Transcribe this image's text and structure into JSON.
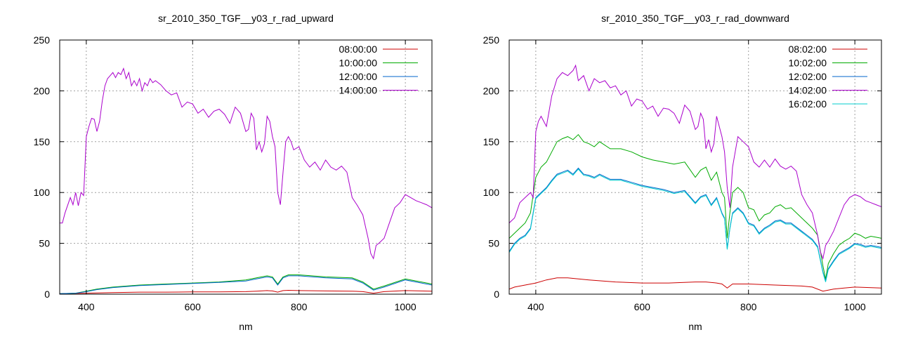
{
  "chart_data": [
    {
      "type": "line",
      "title": "sr_2010_350_TGF__y03_r_rad_upward",
      "xlabel": "nm",
      "ylabel": "",
      "xlim": [
        350,
        1050
      ],
      "ylim": [
        0,
        250
      ],
      "xticks": [
        400,
        600,
        800,
        1000
      ],
      "yticks": [
        0,
        50,
        100,
        150,
        200,
        250
      ],
      "grid": true,
      "legend_position": "top-right",
      "series": [
        {
          "name": "08:00:00",
          "color": "#cc0000",
          "x": [
            350,
            400,
            450,
            500,
            550,
            600,
            650,
            700,
            720,
            740,
            750,
            760,
            770,
            780,
            800,
            850,
            900,
            920,
            940,
            960,
            1000,
            1050
          ],
          "y": [
            0.5,
            1,
            1.5,
            2,
            2,
            2.2,
            2.3,
            2.5,
            3,
            3.5,
            3.2,
            2,
            3.5,
            3.8,
            3.5,
            3.2,
            3,
            2.5,
            1,
            2.5,
            3.5,
            3
          ]
        },
        {
          "name": "10:00:00",
          "color": "#00aa00",
          "x": [
            350,
            380,
            400,
            420,
            450,
            500,
            550,
            600,
            650,
            700,
            720,
            740,
            750,
            760,
            770,
            780,
            800,
            850,
            900,
            920,
            940,
            960,
            1000,
            1050
          ],
          "y": [
            0.5,
            1,
            3,
            5,
            7,
            9,
            10,
            11,
            12,
            14,
            16,
            18,
            17,
            10,
            17,
            19,
            19,
            17,
            16,
            12,
            5,
            8,
            15,
            10
          ]
        },
        {
          "name": "12:00:00",
          "color": "#0066cc",
          "x": [
            350,
            380,
            400,
            420,
            450,
            500,
            550,
            600,
            650,
            700,
            720,
            740,
            750,
            760,
            770,
            780,
            800,
            850,
            900,
            920,
            940,
            960,
            1000,
            1050
          ],
          "y": [
            0.5,
            1,
            2.5,
            4.5,
            6.5,
            8.5,
            9.5,
            10.5,
            11.5,
            13,
            15,
            17,
            16,
            9,
            16,
            18,
            18,
            16,
            15,
            11,
            4,
            7,
            14,
            9
          ]
        },
        {
          "name": "14:00:00",
          "color": "#aa00cc",
          "x": [
            350,
            355,
            360,
            370,
            375,
            380,
            385,
            390,
            395,
            400,
            405,
            410,
            415,
            420,
            425,
            430,
            435,
            440,
            445,
            450,
            455,
            460,
            465,
            470,
            475,
            480,
            485,
            490,
            495,
            500,
            505,
            510,
            515,
            520,
            525,
            530,
            540,
            550,
            560,
            570,
            580,
            590,
            600,
            610,
            620,
            630,
            640,
            650,
            660,
            670,
            680,
            690,
            700,
            705,
            710,
            715,
            720,
            725,
            730,
            735,
            740,
            745,
            750,
            755,
            760,
            765,
            770,
            775,
            780,
            785,
            790,
            800,
            810,
            820,
            830,
            840,
            850,
            860,
            870,
            880,
            890,
            900,
            910,
            920,
            930,
            935,
            940,
            945,
            950,
            960,
            970,
            980,
            990,
            1000,
            1010,
            1020,
            1030,
            1040,
            1050
          ],
          "y": [
            70,
            70,
            80,
            95,
            88,
            100,
            87,
            100,
            97,
            155,
            165,
            173,
            172,
            160,
            170,
            190,
            205,
            212,
            215,
            218,
            213,
            218,
            216,
            222,
            212,
            218,
            205,
            210,
            205,
            212,
            200,
            208,
            205,
            212,
            208,
            210,
            206,
            200,
            196,
            198,
            184,
            189,
            187,
            178,
            182,
            174,
            180,
            182,
            177,
            168,
            184,
            178,
            160,
            162,
            178,
            173,
            142,
            150,
            140,
            148,
            175,
            170,
            155,
            145,
            100,
            88,
            120,
            150,
            155,
            150,
            142,
            145,
            132,
            125,
            130,
            122,
            132,
            125,
            122,
            126,
            120,
            95,
            87,
            78,
            55,
            40,
            35,
            48,
            50,
            55,
            70,
            85,
            90,
            98,
            95,
            92,
            90,
            88,
            85
          ]
        }
      ]
    },
    {
      "type": "line",
      "title": "sr_2010_350_TGF__y03_r_rad_downward",
      "xlabel": "nm",
      "ylabel": "",
      "xlim": [
        350,
        1050
      ],
      "ylim": [
        0,
        250
      ],
      "xticks": [
        400,
        600,
        800,
        1000
      ],
      "yticks": [
        0,
        50,
        100,
        150,
        200,
        250
      ],
      "grid": true,
      "legend_position": "top-right",
      "series": [
        {
          "name": "08:02:00",
          "color": "#cc0000",
          "x": [
            350,
            360,
            380,
            400,
            420,
            440,
            460,
            480,
            500,
            550,
            600,
            650,
            700,
            720,
            740,
            750,
            760,
            770,
            780,
            800,
            850,
            900,
            920,
            940,
            960,
            980,
            1000,
            1050
          ],
          "y": [
            5,
            7,
            9,
            11,
            14,
            16,
            16,
            15,
            14,
            12,
            11,
            11,
            12,
            12,
            11,
            10,
            6,
            10,
            10,
            10,
            9,
            8,
            7,
            3,
            5,
            6,
            7,
            6
          ]
        },
        {
          "name": "10:02:00",
          "color": "#00aa00",
          "x": [
            350,
            360,
            370,
            380,
            390,
            400,
            410,
            420,
            430,
            440,
            450,
            460,
            470,
            480,
            490,
            500,
            510,
            520,
            540,
            560,
            580,
            600,
            620,
            640,
            660,
            680,
            700,
            710,
            720,
            730,
            740,
            750,
            755,
            760,
            765,
            770,
            780,
            790,
            800,
            810,
            820,
            830,
            840,
            850,
            860,
            870,
            880,
            900,
            910,
            920,
            930,
            940,
            945,
            950,
            960,
            970,
            980,
            990,
            1000,
            1010,
            1020,
            1030,
            1040,
            1050
          ],
          "y": [
            55,
            60,
            65,
            70,
            80,
            115,
            125,
            130,
            140,
            150,
            153,
            155,
            152,
            157,
            150,
            148,
            145,
            150,
            143,
            143,
            140,
            135,
            132,
            130,
            128,
            130,
            115,
            122,
            125,
            112,
            120,
            100,
            95,
            55,
            80,
            100,
            105,
            100,
            85,
            83,
            72,
            78,
            80,
            86,
            88,
            84,
            85,
            75,
            70,
            65,
            58,
            28,
            15,
            30,
            40,
            48,
            52,
            55,
            60,
            58,
            55,
            57,
            56,
            55
          ]
        },
        {
          "name": "12:02:00",
          "color": "#0066cc",
          "x": [
            350,
            360,
            370,
            380,
            390,
            400,
            410,
            420,
            430,
            440,
            450,
            460,
            470,
            480,
            490,
            500,
            510,
            520,
            540,
            560,
            580,
            600,
            620,
            640,
            660,
            680,
            700,
            710,
            720,
            730,
            740,
            750,
            755,
            760,
            765,
            770,
            780,
            790,
            800,
            810,
            820,
            830,
            840,
            850,
            860,
            870,
            880,
            900,
            910,
            920,
            930,
            940,
            945,
            950,
            960,
            970,
            980,
            990,
            1000,
            1010,
            1020,
            1030,
            1040,
            1050
          ],
          "y": [
            42,
            50,
            55,
            58,
            65,
            95,
            100,
            105,
            112,
            118,
            120,
            122,
            118,
            124,
            118,
            117,
            115,
            118,
            113,
            113,
            110,
            107,
            105,
            103,
            100,
            102,
            90,
            96,
            98,
            88,
            95,
            80,
            75,
            45,
            65,
            80,
            85,
            80,
            70,
            68,
            60,
            65,
            68,
            72,
            73,
            70,
            70,
            62,
            58,
            54,
            47,
            22,
            13,
            25,
            33,
            40,
            43,
            46,
            50,
            49,
            47,
            48,
            47,
            46
          ]
        },
        {
          "name": "14:02:00",
          "color": "#aa00cc",
          "x": [
            350,
            360,
            370,
            380,
            390,
            395,
            400,
            405,
            410,
            420,
            430,
            440,
            450,
            460,
            470,
            475,
            480,
            490,
            500,
            510,
            520,
            530,
            540,
            550,
            560,
            570,
            580,
            590,
            600,
            610,
            620,
            630,
            640,
            650,
            660,
            670,
            680,
            690,
            700,
            705,
            710,
            715,
            720,
            725,
            730,
            735,
            740,
            745,
            750,
            755,
            760,
            765,
            770,
            780,
            790,
            800,
            810,
            820,
            830,
            840,
            850,
            860,
            870,
            880,
            890,
            900,
            910,
            920,
            930,
            935,
            940,
            945,
            950,
            960,
            970,
            980,
            990,
            1000,
            1010,
            1020,
            1030,
            1040,
            1050
          ],
          "y": [
            70,
            75,
            90,
            95,
            100,
            95,
            160,
            170,
            175,
            165,
            195,
            212,
            218,
            215,
            220,
            225,
            210,
            215,
            200,
            212,
            208,
            210,
            203,
            205,
            196,
            200,
            185,
            192,
            190,
            182,
            185,
            175,
            183,
            182,
            178,
            168,
            186,
            180,
            162,
            165,
            178,
            172,
            143,
            152,
            140,
            148,
            175,
            165,
            155,
            140,
            105,
            85,
            125,
            155,
            150,
            145,
            130,
            125,
            132,
            125,
            133,
            126,
            123,
            126,
            121,
            98,
            88,
            80,
            58,
            42,
            35,
            48,
            52,
            62,
            75,
            88,
            95,
            98,
            96,
            92,
            90,
            88,
            86
          ]
        },
        {
          "name": "16:02:00",
          "color": "#00cccc",
          "x": [
            350,
            360,
            370,
            380,
            390,
            400,
            410,
            420,
            430,
            440,
            450,
            460,
            470,
            480,
            490,
            500,
            510,
            520,
            540,
            560,
            580,
            600,
            620,
            640,
            660,
            680,
            700,
            710,
            720,
            730,
            740,
            750,
            755,
            760,
            765,
            770,
            780,
            790,
            800,
            810,
            820,
            830,
            840,
            850,
            860,
            870,
            880,
            900,
            910,
            920,
            930,
            940,
            945,
            950,
            960,
            970,
            980,
            990,
            1000,
            1010,
            1020,
            1030,
            1040,
            1050
          ],
          "y": [
            41,
            49,
            54,
            57,
            64,
            94,
            99,
            104,
            111,
            117,
            119,
            121,
            117,
            123,
            117,
            116,
            114,
            117,
            112,
            112,
            109,
            106,
            104,
            102,
            99,
            101,
            89,
            95,
            97,
            87,
            94,
            79,
            74,
            44,
            64,
            79,
            84,
            79,
            69,
            67,
            59,
            64,
            67,
            71,
            72,
            69,
            69,
            61,
            57,
            53,
            46,
            21,
            12,
            24,
            32,
            39,
            42,
            45,
            49,
            48,
            46,
            47,
            46,
            45
          ]
        }
      ]
    }
  ]
}
